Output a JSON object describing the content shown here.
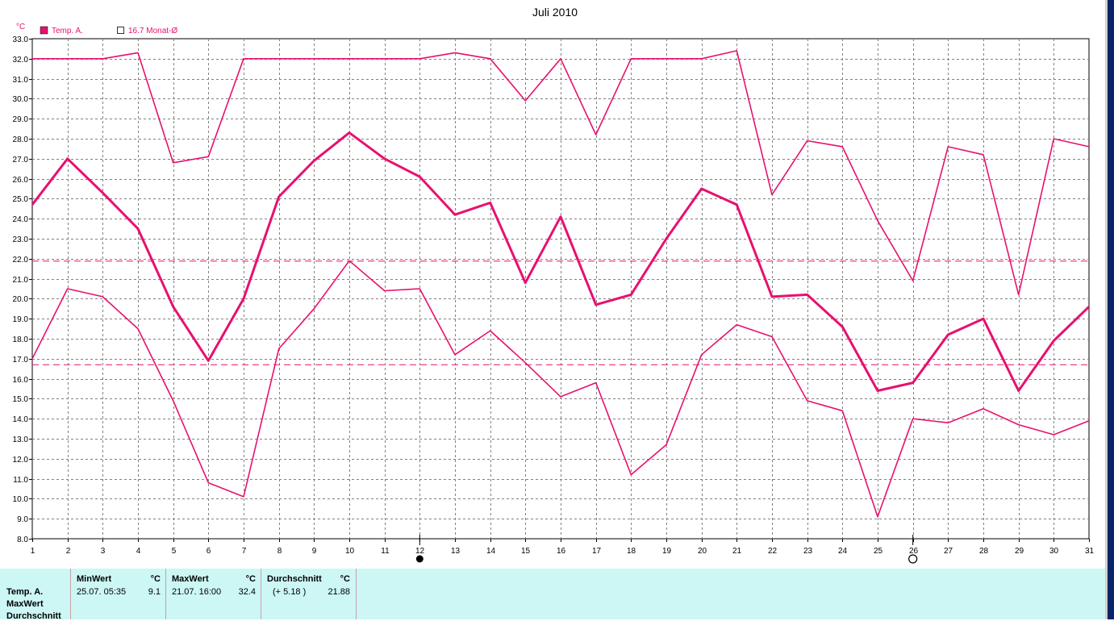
{
  "title": "Juli 2010",
  "unit_label": "°C",
  "legend": {
    "series_label": "Temp. A.",
    "avg_label": "16.7 Monat-Ø",
    "series_color": "#e8106e"
  },
  "moon": {
    "full_day": 12,
    "new_day": 26
  },
  "stats": {
    "rows": [
      "Temp. A.",
      "MaxWert",
      "Durchschnitt"
    ],
    "min": {
      "header": "MinWert",
      "unit": "°C",
      "when": "25.07.  05:35",
      "value": "9.1"
    },
    "max": {
      "header": "MaxWert",
      "unit": "°C",
      "when": "21.07.  16:00",
      "value": "32.4"
    },
    "avg": {
      "header": "Durchschnitt",
      "unit": "°C",
      "when": "(+ 5.18 )",
      "value": "21.88"
    }
  },
  "chart_data": {
    "type": "line",
    "title": "Juli 2010",
    "ylabel": "°C",
    "ylim": [
      8.0,
      33.0
    ],
    "ytick_step": 1.0,
    "x": [
      1,
      2,
      3,
      4,
      5,
      6,
      7,
      8,
      9,
      10,
      11,
      12,
      13,
      14,
      15,
      16,
      17,
      18,
      19,
      20,
      21,
      22,
      23,
      24,
      25,
      26,
      27,
      28,
      29,
      30,
      31
    ],
    "grid": true,
    "legend_position": "top-left",
    "series": [
      {
        "role": "max",
        "color": "#e8106e",
        "values": [
          32.0,
          32.0,
          32.0,
          32.3,
          26.8,
          27.1,
          32.0,
          32.0,
          32.0,
          32.0,
          32.0,
          32.0,
          32.3,
          32.0,
          29.9,
          32.0,
          28.2,
          32.0,
          32.0,
          32.0,
          32.4,
          25.2,
          27.9,
          27.6,
          23.9,
          20.9,
          27.6,
          27.2,
          20.2,
          28.0,
          27.6
        ]
      },
      {
        "role": "avg",
        "color": "#e8106e",
        "values": [
          24.7,
          27.0,
          25.3,
          23.5,
          19.6,
          16.9,
          20.0,
          25.1,
          26.9,
          28.3,
          27.0,
          26.1,
          24.2,
          24.8,
          20.8,
          24.1,
          19.7,
          20.2,
          23.0,
          25.5,
          24.7,
          20.1,
          20.2,
          18.6,
          15.4,
          15.8,
          18.2,
          19.0,
          15.4,
          17.9,
          19.6
        ]
      },
      {
        "role": "min",
        "color": "#e8106e",
        "values": [
          17.0,
          20.5,
          20.1,
          18.5,
          14.9,
          10.8,
          10.1,
          17.5,
          19.5,
          21.9,
          20.4,
          20.5,
          17.2,
          18.4,
          16.8,
          15.1,
          15.8,
          11.2,
          12.7,
          17.2,
          18.7,
          18.1,
          14.9,
          14.4,
          9.1,
          14.0,
          13.8,
          14.5,
          13.7,
          13.2,
          13.9
        ]
      }
    ],
    "reference_lines": [
      {
        "value": 16.7,
        "color": "#e8106e",
        "style": "dashed"
      },
      {
        "value": 21.88,
        "color": "#e8106e",
        "style": "dashed"
      }
    ]
  }
}
